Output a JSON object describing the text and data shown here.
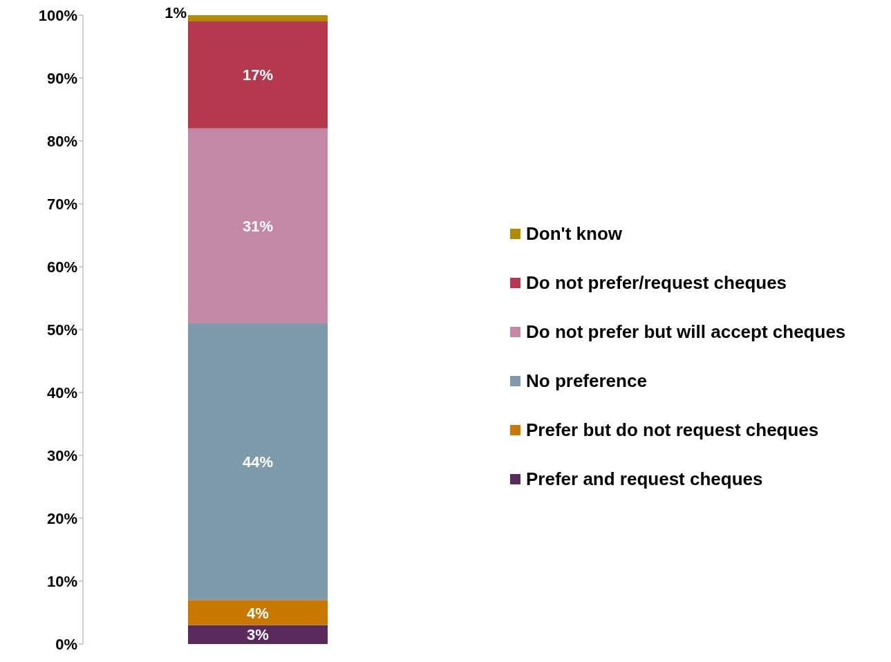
{
  "chart_data": {
    "type": "bar",
    "stacked": true,
    "categories": [
      null
    ],
    "series": [
      {
        "name": "Prefer and request cheques",
        "color": "#5b2a5c",
        "values": [
          3
        ],
        "value_labels": [
          "3%"
        ]
      },
      {
        "name": "Prefer but do not request cheques",
        "color": "#c97800",
        "values": [
          4
        ],
        "value_labels": [
          "4%"
        ]
      },
      {
        "name": "No preference",
        "color": "#7f9bab",
        "values": [
          44
        ],
        "value_labels": [
          "44%"
        ]
      },
      {
        "name": "Do not prefer but will accept cheques",
        "color": "#c487a6",
        "values": [
          31
        ],
        "value_labels": [
          "31%"
        ]
      },
      {
        "name": "Do not prefer/request cheques",
        "color": "#b5384e",
        "values": [
          17
        ],
        "value_labels": [
          "17%"
        ]
      },
      {
        "name": "Don't know",
        "color": "#b08c00",
        "values": [
          1
        ],
        "value_labels": [
          "1%"
        ]
      }
    ],
    "ylim": [
      0,
      100
    ],
    "yticks": [
      {
        "value": 0,
        "label": "0%"
      },
      {
        "value": 10,
        "label": "10%"
      },
      {
        "value": 20,
        "label": "20%"
      },
      {
        "value": 30,
        "label": "30%"
      },
      {
        "value": 40,
        "label": "40%"
      },
      {
        "value": 50,
        "label": "50%"
      },
      {
        "value": 60,
        "label": "60%"
      },
      {
        "value": 70,
        "label": "70%"
      },
      {
        "value": 80,
        "label": "80%"
      },
      {
        "value": 90,
        "label": "90%"
      },
      {
        "value": 100,
        "label": "100%"
      }
    ],
    "grid": false,
    "legend": "right"
  }
}
